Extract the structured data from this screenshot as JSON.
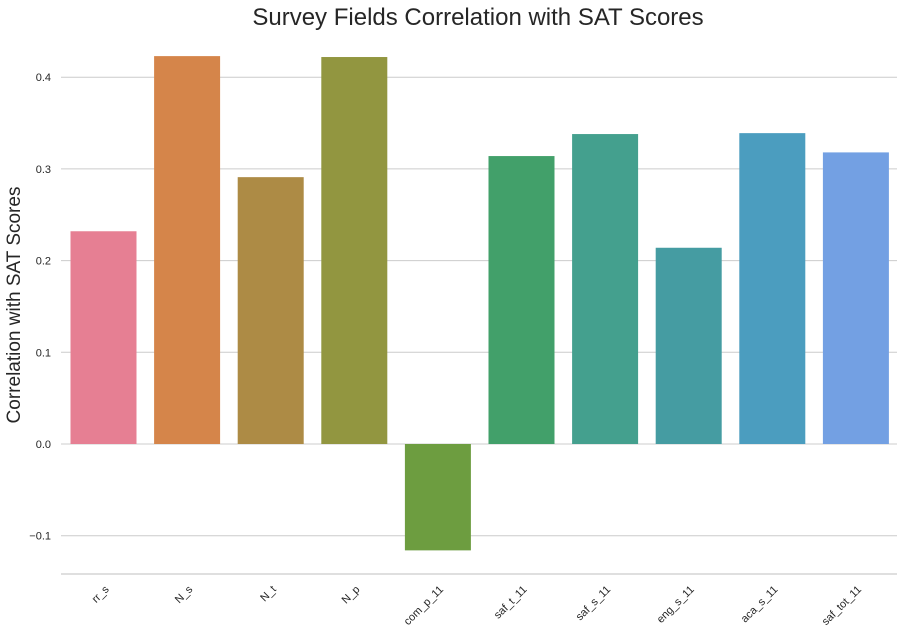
{
  "chart_data": {
    "type": "bar",
    "title": "Survey Fields Correlation with SAT Scores",
    "xlabel": "",
    "ylabel": "Correlation with SAT Scores",
    "categories": [
      "rr_s",
      "N_s",
      "N_t",
      "N_p",
      "com_p_11",
      "saf_t_11",
      "saf_s_11",
      "eng_s_11",
      "aca_s_11",
      "saf_tot_11"
    ],
    "values": [
      0.232,
      0.423,
      0.291,
      0.422,
      -0.116,
      0.314,
      0.338,
      0.214,
      0.339,
      0.318
    ],
    "colors": [
      "#e67f93",
      "#d5854a",
      "#ad8b45",
      "#929640",
      "#6d9d40",
      "#42a06a",
      "#44a08e",
      "#459ca2",
      "#4b9dbf",
      "#73a0e3"
    ],
    "ylim": [
      -0.14,
      0.44
    ],
    "yticks": [
      -0.1,
      0.0,
      0.1,
      0.2,
      0.3,
      0.4
    ],
    "ytick_labels": [
      "−0.1",
      "0.0",
      "0.1",
      "0.2",
      "0.3",
      "0.4"
    ],
    "grid": true,
    "legend": "none"
  }
}
